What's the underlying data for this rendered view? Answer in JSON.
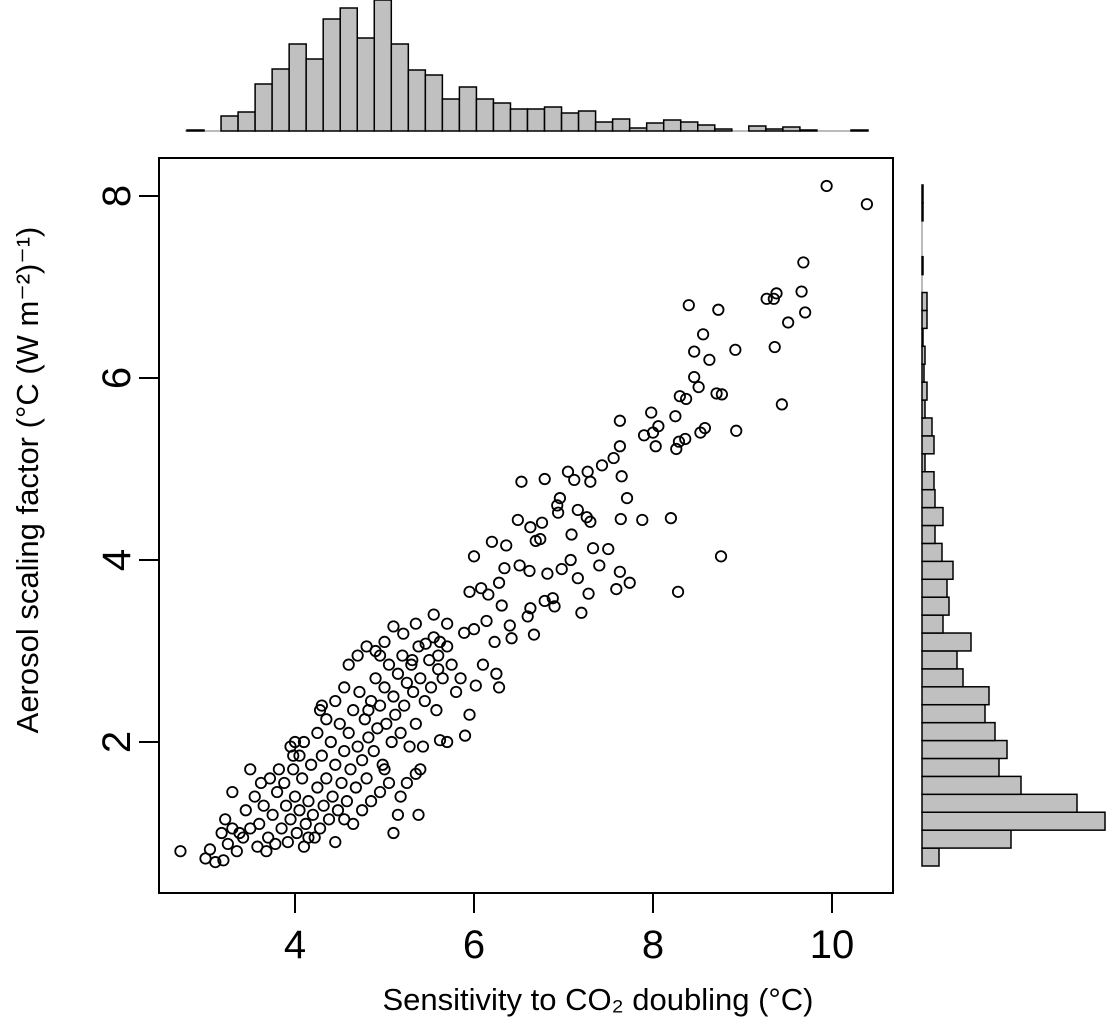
{
  "chart_data": {
    "type": "scatter",
    "xlabel": "Sensitivity to CO₂ doubling (°C)",
    "ylabel": "Aerosol scaling factor (°C (W m⁻²)⁻¹)",
    "xlim": [
      2.5,
      10.7
    ],
    "ylim": [
      0.35,
      8.4
    ],
    "xticks": [
      "4",
      "6",
      "8",
      "10"
    ],
    "yticks": [
      "2",
      "4",
      "6",
      "8"
    ],
    "grid": false,
    "marker": "open-circle",
    "colors": {
      "points": "#000000",
      "hist_fill": "#c0c0c0",
      "hist_edge": "#000000"
    },
    "points": [
      [
        9.94,
        8.11
      ],
      [
        10.39,
        7.91
      ],
      [
        9.68,
        7.27
      ],
      [
        9.66,
        6.95
      ],
      [
        9.38,
        6.93
      ],
      [
        9.35,
        6.87
      ],
      [
        9.27,
        6.87
      ],
      [
        8.4,
        6.8
      ],
      [
        8.73,
        6.75
      ],
      [
        9.7,
        6.72
      ],
      [
        9.51,
        6.61
      ],
      [
        8.56,
        6.48
      ],
      [
        8.46,
        6.29
      ],
      [
        8.92,
        6.31
      ],
      [
        9.36,
        6.34
      ],
      [
        8.63,
        6.2
      ],
      [
        8.46,
        6.01
      ],
      [
        8.51,
        5.9
      ],
      [
        8.71,
        5.83
      ],
      [
        8.77,
        5.82
      ],
      [
        8.3,
        5.8
      ],
      [
        8.37,
        5.77
      ],
      [
        9.44,
        5.71
      ],
      [
        7.98,
        5.62
      ],
      [
        8.25,
        5.58
      ],
      [
        8.58,
        5.45
      ],
      [
        8.53,
        5.4
      ],
      [
        8.36,
        5.33
      ],
      [
        8.29,
        5.3
      ],
      [
        8.93,
        5.42
      ],
      [
        8.06,
        5.47
      ],
      [
        8.0,
        5.4
      ],
      [
        7.9,
        5.37
      ],
      [
        7.63,
        5.53
      ],
      [
        8.03,
        5.25
      ],
      [
        8.26,
        5.22
      ],
      [
        7.63,
        5.25
      ],
      [
        7.56,
        5.12
      ],
      [
        7.43,
        5.04
      ],
      [
        7.65,
        4.92
      ],
      [
        7.27,
        4.97
      ],
      [
        7.05,
        4.97
      ],
      [
        7.71,
        4.68
      ],
      [
        7.3,
        4.86
      ],
      [
        6.53,
        4.86
      ],
      [
        6.79,
        4.89
      ],
      [
        7.12,
        4.88
      ],
      [
        8.2,
        4.46
      ],
      [
        7.64,
        4.45
      ],
      [
        7.88,
        4.44
      ],
      [
        7.3,
        4.42
      ],
      [
        7.26,
        4.47
      ],
      [
        7.16,
        4.55
      ],
      [
        6.94,
        4.52
      ],
      [
        6.96,
        4.68
      ],
      [
        6.93,
        4.6
      ],
      [
        6.76,
        4.41
      ],
      [
        6.49,
        4.44
      ],
      [
        6.63,
        4.36
      ],
      [
        6.69,
        4.21
      ],
      [
        6.36,
        4.16
      ],
      [
        6.2,
        4.2
      ],
      [
        6.0,
        4.04
      ],
      [
        6.74,
        4.23
      ],
      [
        7.09,
        4.28
      ],
      [
        7.33,
        4.13
      ],
      [
        7.5,
        4.12
      ],
      [
        8.76,
        4.04
      ],
      [
        7.08,
        4.0
      ],
      [
        6.98,
        3.9
      ],
      [
        6.82,
        3.85
      ],
      [
        6.62,
        3.88
      ],
      [
        7.4,
        3.94
      ],
      [
        7.63,
        3.87
      ],
      [
        7.74,
        3.75
      ],
      [
        7.16,
        3.8
      ],
      [
        6.88,
        3.58
      ],
      [
        7.28,
        3.63
      ],
      [
        8.28,
        3.65
      ],
      [
        7.59,
        3.68
      ],
      [
        7.2,
        3.42
      ],
      [
        6.79,
        3.55
      ],
      [
        6.9,
        3.49
      ],
      [
        6.63,
        3.47
      ],
      [
        6.67,
        3.18
      ],
      [
        6.4,
        3.28
      ],
      [
        6.6,
        3.38
      ],
      [
        6.16,
        3.62
      ],
      [
        5.95,
        3.65
      ],
      [
        6.28,
        3.75
      ],
      [
        6.34,
        3.91
      ],
      [
        6.51,
        3.94
      ],
      [
        6.08,
        3.69
      ],
      [
        6.14,
        3.33
      ],
      [
        6.31,
        3.5
      ],
      [
        6.42,
        3.14
      ],
      [
        6.0,
        3.24
      ],
      [
        6.23,
        3.1
      ],
      [
        5.89,
        3.2
      ],
      [
        5.62,
        3.1
      ],
      [
        5.46,
        3.08
      ],
      [
        5.7,
        3.3
      ],
      [
        5.55,
        3.4
      ],
      [
        5.35,
        3.3
      ],
      [
        5.21,
        3.19
      ],
      [
        5.1,
        3.27
      ],
      [
        5.0,
        3.1
      ],
      [
        4.95,
        2.95
      ],
      [
        5.31,
        2.9
      ],
      [
        5.6,
        2.8
      ],
      [
        5.85,
        2.7
      ],
      [
        6.1,
        2.85
      ],
      [
        6.25,
        2.75
      ],
      [
        5.8,
        2.55
      ],
      [
        6.02,
        2.62
      ],
      [
        6.28,
        2.6
      ],
      [
        5.95,
        2.3
      ],
      [
        5.62,
        2.02
      ],
      [
        5.7,
        2.0
      ],
      [
        5.9,
        2.07
      ],
      [
        5.43,
        1.95
      ],
      [
        5.4,
        1.7
      ],
      [
        5.35,
        1.65
      ],
      [
        5.25,
        1.55
      ],
      [
        5.38,
        1.2
      ],
      [
        5.18,
        1.4
      ],
      [
        5.1,
        1.0
      ],
      [
        5.0,
        1.7
      ],
      [
        4.82,
        2.35
      ],
      [
        4.3,
        2.4
      ],
      [
        4.28,
        2.35
      ],
      [
        3.5,
        1.7
      ],
      [
        2.72,
        0.8
      ],
      [
        3.0,
        0.72
      ],
      [
        3.05,
        0.82
      ],
      [
        3.11,
        0.68
      ],
      [
        3.2,
        0.7
      ],
      [
        3.25,
        0.88
      ],
      [
        3.18,
        1.0
      ],
      [
        3.3,
        1.05
      ],
      [
        3.38,
        1.0
      ],
      [
        3.22,
        1.15
      ],
      [
        3.45,
        1.25
      ],
      [
        3.55,
        1.4
      ],
      [
        3.6,
        1.1
      ],
      [
        3.65,
        1.3
      ],
      [
        3.7,
        0.95
      ],
      [
        3.75,
        1.2
      ],
      [
        3.8,
        1.45
      ],
      [
        3.85,
        1.05
      ],
      [
        3.9,
        1.3
      ],
      [
        3.92,
        0.9
      ],
      [
        3.95,
        1.15
      ],
      [
        4.0,
        1.4
      ],
      [
        4.02,
        1.0
      ],
      [
        4.05,
        1.25
      ],
      [
        4.08,
        1.6
      ],
      [
        4.1,
        0.85
      ],
      [
        4.12,
        1.1
      ],
      [
        4.15,
        1.35
      ],
      [
        4.18,
        1.75
      ],
      [
        4.2,
        1.2
      ],
      [
        4.22,
        0.95
      ],
      [
        4.25,
        1.5
      ],
      [
        4.28,
        1.05
      ],
      [
        4.3,
        1.85
      ],
      [
        4.32,
        1.3
      ],
      [
        4.35,
        1.6
      ],
      [
        4.38,
        1.15
      ],
      [
        4.4,
        2.0
      ],
      [
        4.42,
        1.4
      ],
      [
        4.45,
        1.75
      ],
      [
        4.48,
        1.25
      ],
      [
        4.5,
        2.2
      ],
      [
        4.52,
        1.55
      ],
      [
        4.55,
        1.9
      ],
      [
        4.58,
        1.35
      ],
      [
        4.6,
        2.1
      ],
      [
        4.62,
        1.7
      ],
      [
        4.65,
        2.35
      ],
      [
        4.68,
        1.5
      ],
      [
        4.7,
        1.95
      ],
      [
        4.72,
        2.55
      ],
      [
        4.75,
        1.8
      ],
      [
        4.78,
        2.25
      ],
      [
        4.8,
        1.6
      ],
      [
        4.82,
        2.05
      ],
      [
        4.85,
        2.45
      ],
      [
        4.88,
        1.9
      ],
      [
        4.9,
        2.7
      ],
      [
        4.92,
        2.15
      ],
      [
        4.95,
        2.4
      ],
      [
        4.98,
        1.75
      ],
      [
        5.0,
        2.6
      ],
      [
        5.02,
        2.2
      ],
      [
        5.05,
        2.85
      ],
      [
        5.08,
        2.0
      ],
      [
        5.1,
        2.5
      ],
      [
        5.12,
        2.3
      ],
      [
        5.15,
        2.75
      ],
      [
        5.18,
        2.1
      ],
      [
        5.2,
        2.95
      ],
      [
        5.22,
        2.4
      ],
      [
        5.25,
        2.65
      ],
      [
        5.28,
        1.95
      ],
      [
        5.3,
        2.85
      ],
      [
        5.32,
        2.55
      ],
      [
        5.35,
        2.2
      ],
      [
        5.38,
        3.05
      ],
      [
        5.4,
        2.7
      ],
      [
        5.45,
        2.45
      ],
      [
        5.5,
        2.9
      ],
      [
        5.52,
        2.6
      ],
      [
        5.55,
        3.15
      ],
      [
        5.58,
        2.35
      ],
      [
        5.6,
        2.95
      ],
      [
        5.65,
        2.7
      ],
      [
        5.7,
        3.05
      ],
      [
        5.75,
        2.85
      ],
      [
        3.3,
        1.45
      ],
      [
        3.35,
        0.8
      ],
      [
        3.42,
        0.95
      ],
      [
        3.5,
        1.05
      ],
      [
        3.58,
        0.85
      ],
      [
        3.62,
        1.55
      ],
      [
        3.68,
        0.8
      ],
      [
        3.72,
        1.6
      ],
      [
        3.78,
        0.88
      ],
      [
        3.82,
        1.7
      ],
      [
        3.88,
        1.55
      ],
      [
        3.98,
        1.7
      ],
      [
        4.05,
        1.85
      ],
      [
        4.1,
        2.0
      ],
      [
        4.15,
        0.95
      ],
      [
        4.25,
        2.1
      ],
      [
        4.35,
        2.25
      ],
      [
        4.45,
        0.9
      ],
      [
        4.55,
        1.15
      ],
      [
        4.65,
        1.1
      ],
      [
        4.75,
        1.25
      ],
      [
        4.85,
        1.35
      ],
      [
        4.95,
        1.45
      ],
      [
        5.05,
        1.55
      ],
      [
        5.15,
        1.2
      ],
      [
        4.45,
        2.45
      ],
      [
        4.55,
        2.6
      ],
      [
        4.6,
        2.85
      ],
      [
        4.7,
        2.95
      ],
      [
        4.8,
        3.05
      ],
      [
        4.9,
        3.0
      ],
      [
        3.95,
        1.95
      ],
      [
        4.0,
        2.0
      ],
      [
        3.98,
        1.85
      ]
    ],
    "x_histogram": {
      "bin_width": 0.2,
      "bin_starts": [
        2.8,
        3.0,
        3.2,
        3.4,
        3.6,
        3.8,
        4.0,
        4.2,
        4.4,
        4.6,
        4.8,
        5.0,
        5.2,
        5.4,
        5.6,
        5.8,
        6.0,
        6.2,
        6.4,
        6.6,
        6.8,
        7.0,
        7.2,
        7.4,
        7.6,
        7.8,
        8.0,
        8.2,
        8.4,
        8.6,
        8.8,
        9.0,
        9.2,
        9.4,
        9.6,
        9.8,
        10.0,
        10.2,
        10.4,
        10.6
      ],
      "counts": [
        1,
        0,
        15,
        19,
        47,
        62,
        87,
        72,
        112,
        123,
        93,
        131,
        87,
        61,
        56,
        32,
        44,
        32,
        28,
        22,
        22,
        24,
        18,
        20,
        9,
        12,
        3,
        8,
        11,
        9,
        6,
        2,
        0,
        5,
        2,
        4,
        1,
        0,
        0,
        1
      ]
    },
    "y_histogram": {
      "bin_width": 0.2,
      "bin_starts": [
        0.6,
        0.8,
        1.0,
        1.2,
        1.4,
        1.6,
        1.8,
        2.0,
        2.2,
        2.4,
        2.6,
        2.8,
        3.0,
        3.2,
        3.4,
        3.6,
        3.8,
        4.0,
        4.2,
        4.4,
        4.6,
        4.8,
        5.0,
        5.2,
        5.4,
        5.6,
        5.8,
        6.0,
        6.2,
        6.4,
        6.6,
        6.8,
        7.0,
        7.2,
        7.4,
        7.6,
        7.8,
        8.0
      ],
      "counts": [
        17,
        89,
        183,
        155,
        99,
        77,
        85,
        73,
        63,
        67,
        41,
        35,
        49,
        21,
        27,
        25,
        31,
        20,
        13,
        21,
        13,
        12,
        3,
        12,
        10,
        3,
        5,
        2,
        3,
        1,
        5,
        5,
        0,
        1,
        0,
        0,
        1,
        1
      ]
    }
  }
}
